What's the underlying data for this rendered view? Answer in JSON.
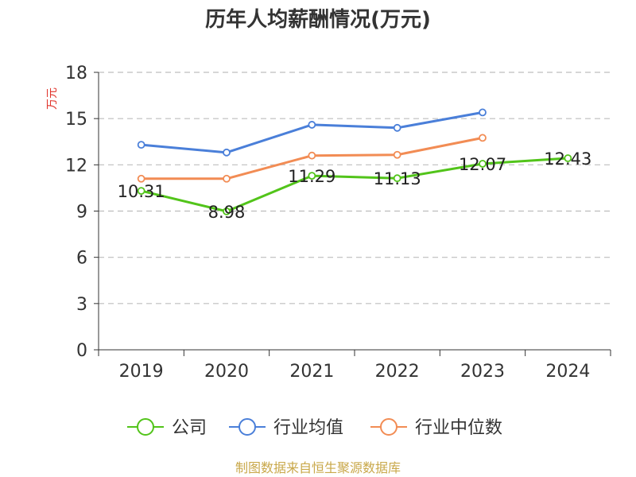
{
  "chart_data": {
    "type": "line",
    "title": "历年人均薪酬情况(万元)",
    "ylabel": "万元",
    "categories": [
      "2019",
      "2020",
      "2021",
      "2022",
      "2023",
      "2024"
    ],
    "ylim": [
      0,
      18
    ],
    "yticks": [
      0,
      3,
      6,
      9,
      12,
      15,
      18
    ],
    "grid": true,
    "legend_position": "bottom",
    "series": [
      {
        "name": "公司",
        "color": "#52c41a",
        "values": [
          10.31,
          8.98,
          11.29,
          11.13,
          12.07,
          12.43
        ],
        "show_labels": true
      },
      {
        "name": "行业均值",
        "color": "#4a7fd9",
        "values": [
          13.3,
          12.8,
          14.6,
          14.4,
          15.4,
          null
        ],
        "show_labels": false
      },
      {
        "name": "行业中位数",
        "color": "#f28c54",
        "values": [
          11.1,
          11.1,
          12.6,
          12.65,
          13.75,
          null
        ],
        "show_labels": false
      }
    ]
  },
  "source_text": "制图数据来自恒生聚源数据库"
}
